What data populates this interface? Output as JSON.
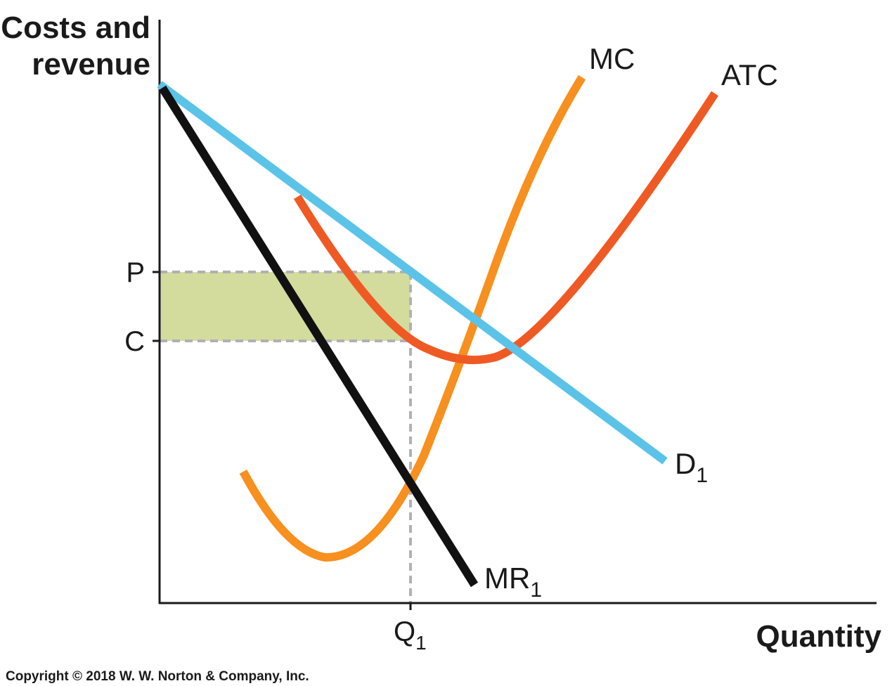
{
  "diagram": {
    "y_axis_title_line1": "Costs and",
    "y_axis_title_line2": "revenue",
    "x_axis_title": "Quantity",
    "price_tick": "P",
    "cost_tick": "C",
    "quantity_tick": "Q",
    "quantity_tick_sub": "1",
    "curves": {
      "mc": "MC",
      "atc": "ATC",
      "demand": "D",
      "demand_sub": "1",
      "mr": "MR",
      "mr_sub": "1"
    },
    "colors": {
      "demand": "#5bc3e8",
      "mr": "#111111",
      "mc": "#f7901e",
      "atc": "#ef5a24",
      "profit_area": "#d3dc9c",
      "guides": "#b0b0b8",
      "axes": "#1a1a1a"
    },
    "copyright": "Copyright © 2018 W. W. Norton & Company, Inc."
  }
}
